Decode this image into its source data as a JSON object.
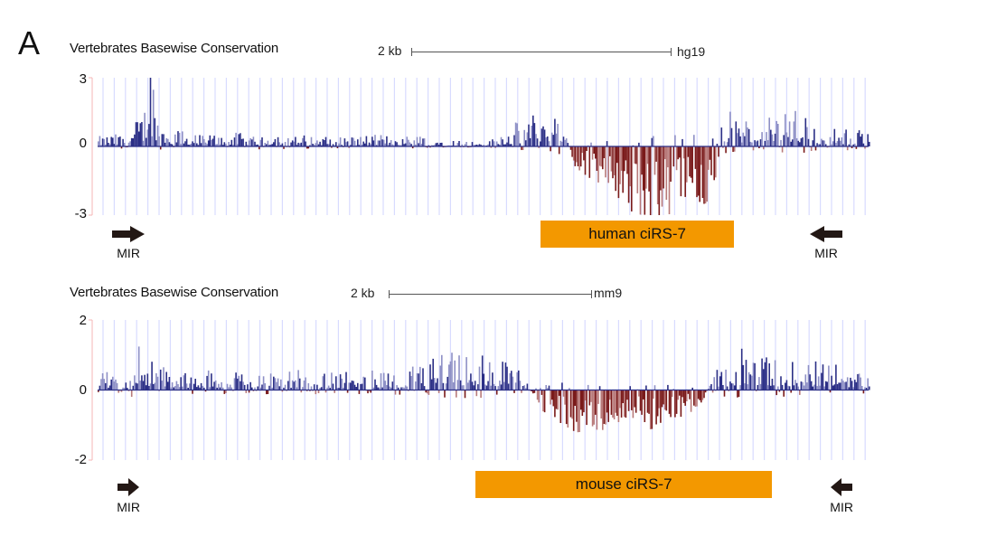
{
  "panel_label": "A",
  "colors": {
    "positive": "#2b2f86",
    "positive_light": "#8e90c6",
    "negative": "#7a1a1a",
    "negative_light": "#b87a7a",
    "gridline": "#d8dbff",
    "axis": "#f4b6b6",
    "feature": "#f39800",
    "arrow": "#231815"
  },
  "chart_data": [
    {
      "type": "bar",
      "title": "Vertebrates Basewise Conservation",
      "scale_label": "2 kb",
      "assembly": "hg19",
      "ylim": [
        -3,
        3
      ],
      "yticks": [
        "3",
        "0",
        "-3"
      ],
      "profile": [
        [
          0,
          0.25
        ],
        [
          0.04,
          0.35
        ],
        [
          0.06,
          1.0
        ],
        [
          0.065,
          2.9
        ],
        [
          0.08,
          0.6
        ],
        [
          0.12,
          0.3
        ],
        [
          0.2,
          0.35
        ],
        [
          0.3,
          0.25
        ],
        [
          0.38,
          0.3
        ],
        [
          0.45,
          0.2
        ],
        [
          0.5,
          0.1
        ],
        [
          0.56,
          0.8
        ],
        [
          0.6,
          0.9
        ],
        [
          0.62,
          -0.8
        ],
        [
          0.66,
          -1.3
        ],
        [
          0.68,
          -2.0
        ],
        [
          0.72,
          -2.4
        ],
        [
          0.76,
          -2.2
        ],
        [
          0.8,
          -1.6
        ],
        [
          0.81,
          0.9
        ],
        [
          0.86,
          0.6
        ],
        [
          0.9,
          1.0
        ],
        [
          0.93,
          0.5
        ],
        [
          1,
          0.4
        ]
      ],
      "feature": {
        "label": "human ciRS-7",
        "start": 0.575,
        "end": 0.825
      },
      "repeats": [
        {
          "label": "MIR",
          "strand": "+",
          "pos": 0.04
        },
        {
          "label": "MIR",
          "strand": "-",
          "pos": 0.945
        }
      ]
    },
    {
      "type": "bar",
      "title": "Vertebrates Basewise Conservation",
      "scale_label": "2 kb",
      "assembly": "mm9",
      "ylim": [
        -2,
        2
      ],
      "yticks": [
        "2",
        "0",
        "-2"
      ],
      "profile": [
        [
          0,
          0.3
        ],
        [
          0.04,
          0.3
        ],
        [
          0.05,
          0.9
        ],
        [
          0.07,
          0.5
        ],
        [
          0.1,
          0.3
        ],
        [
          0.2,
          0.35
        ],
        [
          0.3,
          0.3
        ],
        [
          0.4,
          0.35
        ],
        [
          0.45,
          0.6
        ],
        [
          0.5,
          0.65
        ],
        [
          0.55,
          0.3
        ],
        [
          0.58,
          -0.6
        ],
        [
          0.62,
          -0.9
        ],
        [
          0.66,
          -0.8
        ],
        [
          0.7,
          -0.9
        ],
        [
          0.74,
          -0.7
        ],
        [
          0.78,
          -0.4
        ],
        [
          0.8,
          0.4
        ],
        [
          0.84,
          0.7
        ],
        [
          0.88,
          0.5
        ],
        [
          0.94,
          0.5
        ],
        [
          1,
          0.3
        ]
      ],
      "feature": {
        "label": "mouse ciRS-7",
        "start": 0.49,
        "end": 0.875
      },
      "repeats": [
        {
          "label": "MIR",
          "strand": "+",
          "pos": 0.04
        },
        {
          "label": "MIR",
          "strand": "-",
          "pos": 0.965
        }
      ]
    }
  ]
}
